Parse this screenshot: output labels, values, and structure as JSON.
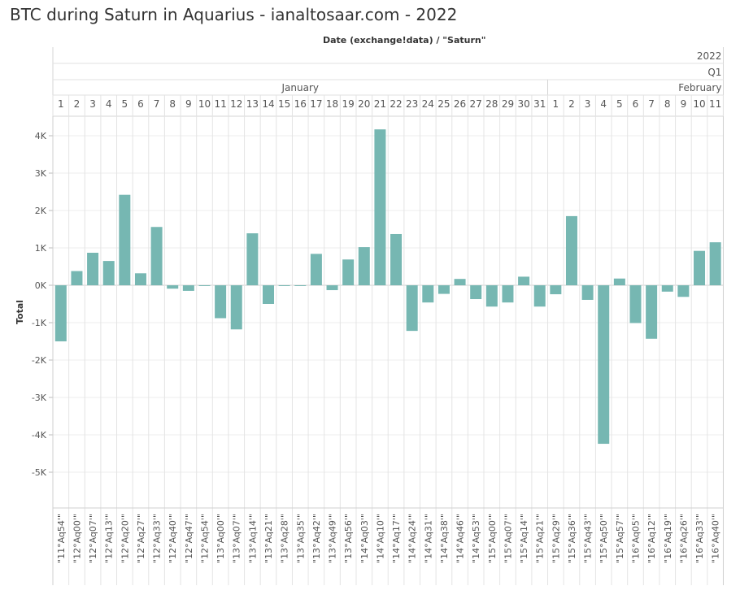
{
  "title": "BTC during Saturn in Aquarius - ianaltosaar.com - 2022",
  "chart_data": {
    "type": "bar",
    "title": "BTC during Saturn in Aquarius - ianaltosaar.com - 2022",
    "column_header": "Date (exchange!data)  /  \"Saturn\"",
    "year_label": "2022",
    "quarter_label": "Q1",
    "months": [
      {
        "name": "January",
        "days": [
          "1",
          "2",
          "3",
          "4",
          "5",
          "6",
          "7",
          "8",
          "9",
          "10",
          "11",
          "12",
          "13",
          "14",
          "15",
          "16",
          "17",
          "18",
          "19",
          "20",
          "21",
          "22",
          "23",
          "24",
          "25",
          "26",
          "27",
          "28",
          "29",
          "30",
          "31"
        ]
      },
      {
        "name": "February",
        "days": [
          "1",
          "2",
          "3",
          "4",
          "5",
          "6",
          "7",
          "8",
          "9",
          "10",
          "11"
        ]
      }
    ],
    "categories": [
      "\"11°Aq54'\"",
      "\"12°Aq00'\"",
      "\"12°Aq07'\"",
      "\"12°Aq13'\"",
      "\"12°Aq20'\"",
      "\"12°Aq27'\"",
      "\"12°Aq33'\"",
      "\"12°Aq40'\"",
      "\"12°Aq47'\"",
      "\"12°Aq54'\"",
      "\"13°Aq00'\"",
      "\"13°Aq07'\"",
      "\"13°Aq14'\"",
      "\"13°Aq21'\"",
      "\"13°Aq28'\"",
      "\"13°Aq35'\"",
      "\"13°Aq42'\"",
      "\"13°Aq49'\"",
      "\"13°Aq56'\"",
      "\"14°Aq03'\"",
      "\"14°Aq10'\"",
      "\"14°Aq17'\"",
      "\"14°Aq24'\"",
      "\"14°Aq31'\"",
      "\"14°Aq38'\"",
      "\"14°Aq46'\"",
      "\"14°Aq53'\"",
      "\"15°Aq00'\"",
      "\"15°Aq07'\"",
      "\"15°Aq14'\"",
      "\"15°Aq21'\"",
      "\"15°Aq29'\"",
      "\"15°Aq36'\"",
      "\"15°Aq43'\"",
      "\"15°Aq50'\"",
      "\"15°Aq57'\"",
      "\"16°Aq05'\"",
      "\"16°Aq12'\"",
      "\"16°Aq19'\"",
      "\"16°Aq26'\"",
      "\"16°Aq33'\"",
      "\"16°Aq40'\""
    ],
    "values": [
      -1500,
      380,
      870,
      650,
      2420,
      320,
      1560,
      -90,
      -150,
      -20,
      -880,
      -1180,
      1390,
      -500,
      -20,
      -20,
      840,
      -130,
      690,
      1020,
      4170,
      1370,
      -1220,
      -460,
      -230,
      170,
      -370,
      -570,
      -460,
      230,
      -570,
      -240,
      1850,
      -390,
      -4240,
      180,
      -1010,
      -1430,
      -170,
      -310,
      920,
      1150
    ],
    "ylabel": "Total",
    "ylim": [
      -6000,
      4700
    ],
    "yticks": [
      4000,
      3000,
      2000,
      1000,
      0,
      -1000,
      -2000,
      -3000,
      -4000,
      -5000
    ],
    "ytick_labels": [
      "4K",
      "3K",
      "2K",
      "1K",
      "0K",
      "-1K",
      "-2K",
      "-3K",
      "-4K",
      "-5K"
    ],
    "bar_color": "#76b7b2",
    "grid": true
  }
}
